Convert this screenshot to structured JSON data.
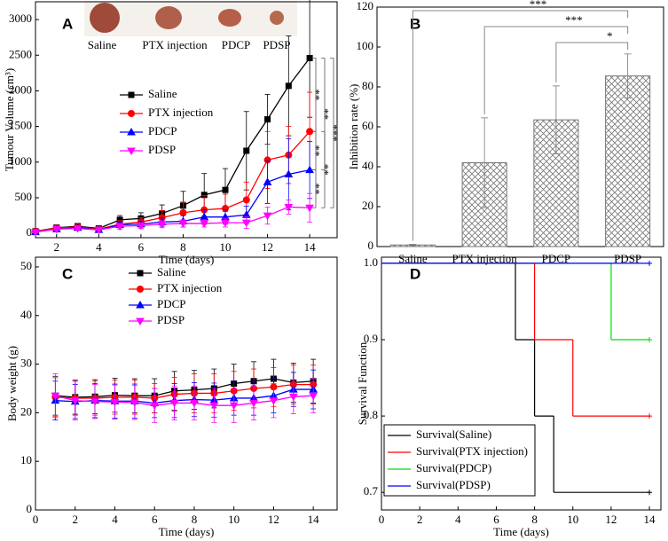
{
  "chart_data": [
    {
      "type": "line",
      "panel": "A",
      "image_labels": [
        "Saline",
        "PTX injection",
        "PDCP",
        "PDSP"
      ],
      "x": [
        1,
        2,
        3,
        4,
        5,
        6,
        7,
        8,
        9,
        10,
        11,
        12,
        13,
        14
      ],
      "xlim": [
        1,
        15.3
      ],
      "xticks": [
        2,
        4,
        6,
        8,
        10,
        12,
        14
      ],
      "ylim": [
        -60,
        3250
      ],
      "yticks": [
        0,
        500,
        1000,
        1500,
        2000,
        2500,
        3000
      ],
      "xlabel": "Time (days)",
      "ylabel": "Tumour Volume (cm³)",
      "series": [
        {
          "name": "Saline",
          "color": "#000000",
          "marker": "square",
          "values": [
            30,
            80,
            100,
            70,
            190,
            210,
            280,
            390,
            540,
            610,
            1160,
            1600,
            2070,
            2460
          ],
          "errors": [
            20,
            40,
            40,
            30,
            60,
            80,
            120,
            200,
            300,
            300,
            550,
            350,
            700,
            830
          ]
        },
        {
          "name": "PTX injection",
          "color": "#ff0000",
          "marker": "circle",
          "values": [
            30,
            75,
            90,
            60,
            130,
            160,
            220,
            290,
            330,
            350,
            470,
            1030,
            1100,
            1430
          ],
          "errors": [
            20,
            30,
            30,
            30,
            50,
            60,
            100,
            150,
            200,
            200,
            250,
            400,
            400,
            550
          ]
        },
        {
          "name": "PDCP",
          "color": "#0000ff",
          "marker": "triangle-up",
          "values": [
            20,
            60,
            80,
            50,
            120,
            130,
            160,
            170,
            230,
            230,
            260,
            720,
            830,
            890
          ],
          "errors": [
            15,
            30,
            30,
            20,
            40,
            40,
            60,
            80,
            100,
            100,
            120,
            300,
            500,
            400
          ]
        },
        {
          "name": "PDSP",
          "color": "#ff00ff",
          "marker": "triangle-down",
          "values": [
            20,
            60,
            70,
            50,
            100,
            110,
            130,
            140,
            140,
            150,
            150,
            250,
            370,
            360
          ],
          "errors": [
            15,
            25,
            25,
            20,
            40,
            40,
            50,
            50,
            50,
            60,
            80,
            120,
            100,
            200
          ]
        }
      ],
      "annotations": [
        "**",
        "**",
        "***",
        "**",
        "**",
        "**"
      ]
    },
    {
      "type": "bar",
      "panel": "B",
      "categories": [
        "Saline",
        "PTX injection",
        "PDCP",
        "PDSP"
      ],
      "values": [
        0.8,
        42,
        63.5,
        85.5
      ],
      "errors": [
        0.3,
        22.5,
        17,
        11
      ],
      "color": "#777777",
      "hatch": true,
      "ylim": [
        0,
        120
      ],
      "yticks": [
        0,
        20,
        40,
        60,
        80,
        100,
        120
      ],
      "ylabel": "Inhibition rate (%)",
      "annotations": [
        "***",
        "***",
        "*"
      ]
    },
    {
      "type": "line",
      "panel": "C",
      "x": [
        1,
        2,
        3,
        4,
        5,
        6,
        7,
        8,
        9,
        10,
        11,
        12,
        13,
        14
      ],
      "xlim": [
        0,
        15.2
      ],
      "xticks": [
        0,
        2,
        4,
        6,
        8,
        10,
        12,
        14
      ],
      "ylim": [
        0,
        52
      ],
      "yticks": [
        0,
        10,
        20,
        30,
        40,
        50
      ],
      "xlabel": "Time (days)",
      "ylabel": "Body weight (g)",
      "series": [
        {
          "name": "Saline",
          "color": "#000000",
          "marker": "square",
          "values": [
            23.5,
            23.2,
            23.3,
            23.6,
            23.5,
            23.5,
            24.5,
            24.7,
            25,
            26,
            26.5,
            27,
            26.2,
            26.5
          ],
          "errors": [
            4,
            3.5,
            3.5,
            3.5,
            3.5,
            3.5,
            4,
            4,
            4,
            4,
            4,
            4,
            4,
            4.5
          ]
        },
        {
          "name": "PTX injection",
          "color": "#ff0000",
          "marker": "circle",
          "values": [
            23.2,
            23,
            23,
            23.2,
            23.2,
            23,
            23.8,
            24,
            24,
            24.5,
            25,
            25.3,
            25.8,
            25.8
          ],
          "errors": [
            4,
            3.5,
            3.5,
            3.5,
            3.5,
            3,
            3.5,
            4,
            4,
            4,
            4,
            4,
            4,
            4
          ]
        },
        {
          "name": "PDCP",
          "color": "#0000ff",
          "marker": "triangle-up",
          "values": [
            22.5,
            22.3,
            22.5,
            22.4,
            22.4,
            22,
            22.5,
            22.7,
            22.6,
            23,
            23,
            23.5,
            24.8,
            24.8
          ],
          "errors": [
            4,
            3.5,
            3.5,
            3.5,
            3.5,
            3,
            3.5,
            3.5,
            3.5,
            3.5,
            3.5,
            3.5,
            3.5,
            4
          ]
        },
        {
          "name": "PDSP",
          "color": "#ff00ff",
          "marker": "triangle-down",
          "values": [
            23.5,
            22.5,
            22.3,
            22.2,
            22.1,
            21.5,
            22,
            22,
            21.5,
            21.5,
            22,
            22.5,
            23.3,
            23.5
          ],
          "errors": [
            4.5,
            4,
            3.5,
            3.5,
            3.5,
            3.5,
            3.5,
            3.5,
            3.5,
            3.5,
            3.5,
            3.5,
            3.5,
            3.5
          ]
        }
      ]
    },
    {
      "type": "step",
      "panel": "D",
      "xlim": [
        0,
        14.6
      ],
      "xticks": [
        0,
        2,
        4,
        6,
        8,
        10,
        12,
        14
      ],
      "ylim": [
        0.677,
        1.008
      ],
      "yticks": [
        0.7,
        0.8,
        0.9,
        {
          "value": 1,
          "label": "1.0"
        }
      ],
      "xlabel": "Time (days)",
      "ylabel": "Survival Function",
      "series": [
        {
          "name": "Survival(Saline)",
          "color": "#000000",
          "x": [
            0,
            7,
            8,
            9,
            14
          ],
          "values": [
            1,
            0.9,
            0.8,
            0.7,
            0.7
          ]
        },
        {
          "name": "Survival(PTX injection)",
          "color": "#ff0000",
          "x": [
            0,
            8,
            10,
            14
          ],
          "values": [
            1,
            0.9,
            0.8,
            0.8
          ]
        },
        {
          "name": "Survival(PDCP)",
          "color": "#00dd00",
          "x": [
            0,
            12,
            14
          ],
          "values": [
            1,
            0.9,
            0.9
          ]
        },
        {
          "name": "Survival(PDSP)",
          "color": "#0000ff",
          "x": [
            0,
            14
          ],
          "values": [
            1,
            1
          ]
        }
      ]
    }
  ]
}
